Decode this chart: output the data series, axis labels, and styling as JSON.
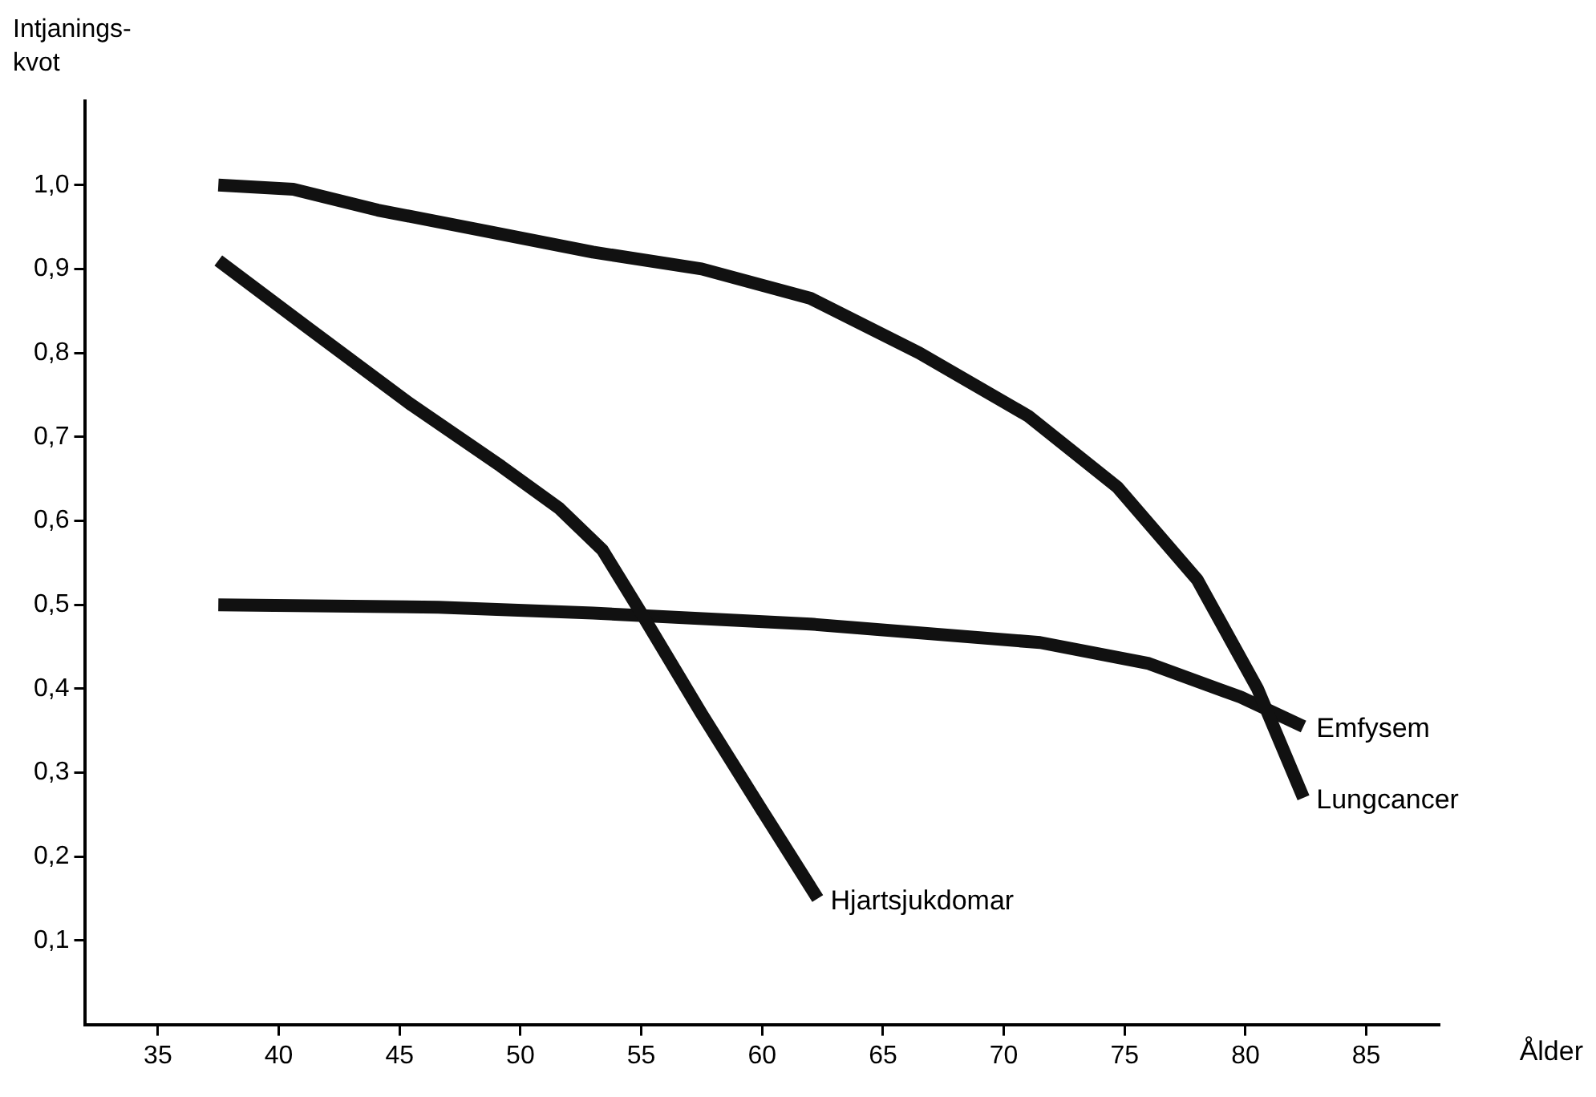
{
  "chart_data": {
    "type": "line",
    "xlabel": "Ålder",
    "ylabel": "Intjanings-\nkvot",
    "xlim": [
      32,
      88
    ],
    "xticks": [
      35,
      40,
      45,
      50,
      55,
      60,
      65,
      70,
      75,
      80,
      85
    ],
    "ylim": [
      0,
      1.1
    ],
    "yticks": [
      {
        "value": 0.1,
        "label": "0,1"
      },
      {
        "value": 0.2,
        "label": "0,2"
      },
      {
        "value": 0.3,
        "label": "0,3"
      },
      {
        "value": 0.4,
        "label": "0,4"
      },
      {
        "value": 0.5,
        "label": "0,5"
      },
      {
        "value": 0.6,
        "label": "0,6"
      },
      {
        "value": 0.7,
        "label": "0,7"
      },
      {
        "value": 0.8,
        "label": "0,8"
      },
      {
        "value": 0.9,
        "label": "0,9"
      },
      {
        "value": 1.0,
        "label": "1,0"
      }
    ],
    "grid": false,
    "legend": false,
    "marker": "none",
    "line_style": "solid",
    "series": [
      {
        "name": "Lungcancer",
        "color": "#111111",
        "x": [
          37.5,
          40.6,
          44.1,
          48.6,
          53,
          57.5,
          62,
          66.5,
          71,
          74.7,
          78,
          80.5,
          82.4
        ],
        "values": [
          1.0,
          0.995,
          0.97,
          0.945,
          0.92,
          0.9,
          0.865,
          0.8,
          0.725,
          0.64,
          0.53,
          0.4,
          0.27
        ]
      },
      {
        "name": "Hjartsjukdomar",
        "color": "#111111",
        "x": [
          37.5,
          41.2,
          45.4,
          49.2,
          51.6,
          53.4,
          55,
          57.5,
          60,
          62.3
        ],
        "values": [
          0.91,
          0.83,
          0.74,
          0.665,
          0.615,
          0.565,
          0.49,
          0.37,
          0.255,
          0.15
        ]
      },
      {
        "name": "Emfysem",
        "color": "#111111",
        "x": [
          37.5,
          46.6,
          53,
          62,
          71.5,
          76,
          79.8,
          82.4
        ],
        "values": [
          0.5,
          0.497,
          0.49,
          0.477,
          0.455,
          0.43,
          0.39,
          0.355
        ]
      }
    ]
  }
}
